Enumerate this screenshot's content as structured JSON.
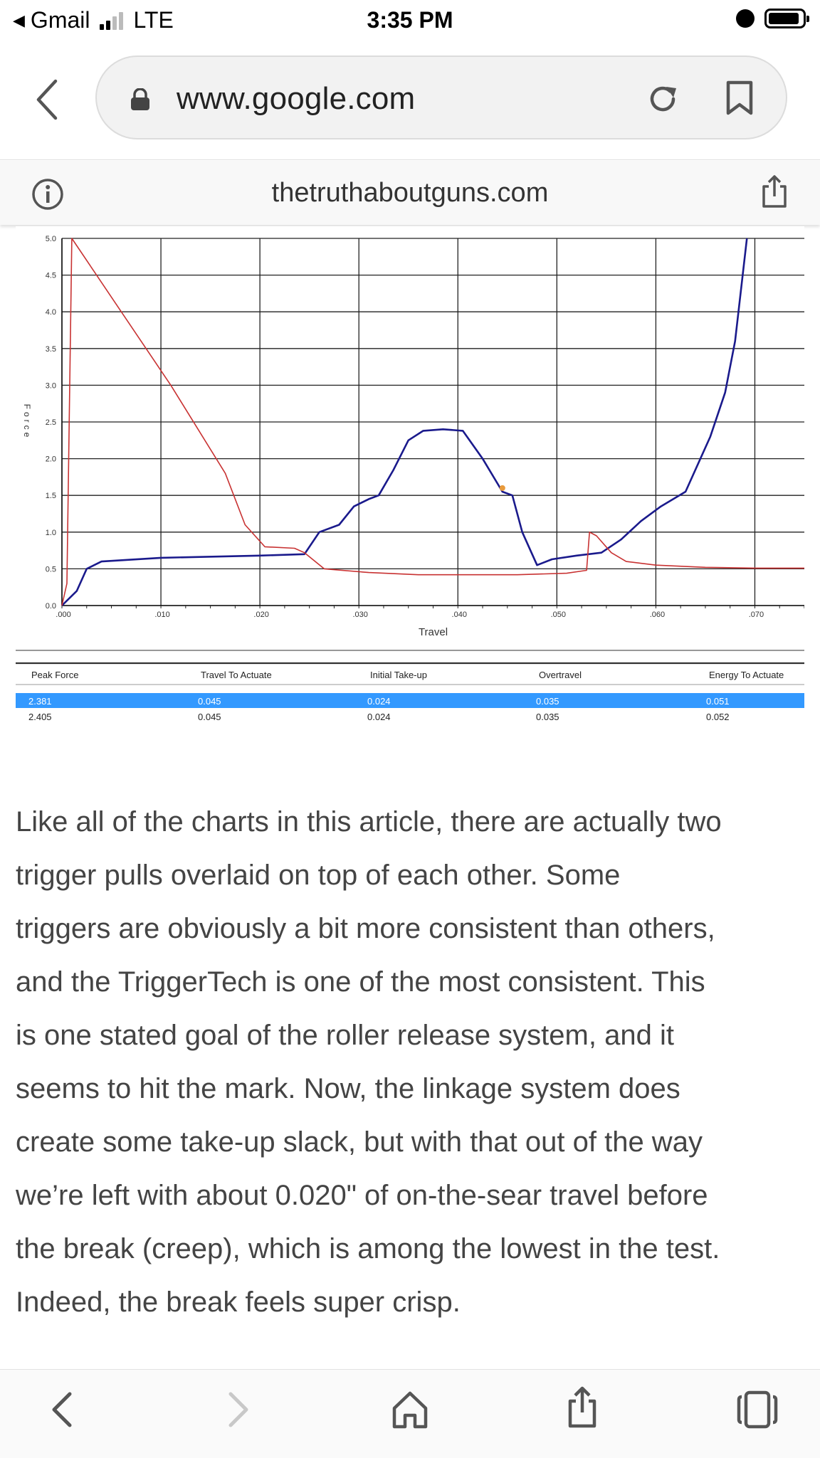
{
  "status": {
    "carrier": "Gmail",
    "network": "LTE",
    "time": "3:35 PM"
  },
  "browser": {
    "url": "www.google.com",
    "amp_domain": "thetruthaboutguns.com"
  },
  "icons": {
    "status": [
      "back-triangle-icon",
      "signal-icon",
      "alarm-icon",
      "battery-icon"
    ],
    "url_bar": [
      "back-chevron-icon",
      "lock-icon",
      "reload-icon",
      "bookmark-icon"
    ],
    "amp_bar": [
      "info-icon",
      "share-icon"
    ],
    "toolbar": [
      "back-chevron-icon",
      "forward-chevron-icon",
      "home-icon",
      "share-icon",
      "tabs-icon"
    ]
  },
  "chart_data": {
    "type": "line",
    "xlabel": "Travel",
    "ylabel": "Force",
    "xlim": [
      0,
      0.075
    ],
    "ylim": [
      0,
      5.0
    ],
    "x_ticks": [
      ".000",
      ".010",
      ".020",
      ".030",
      ".040",
      ".050",
      ".060",
      ".070"
    ],
    "y_ticks": [
      "0.0",
      "0.5",
      "1.0",
      "1.5",
      "2.0",
      "2.5",
      "3.0",
      "3.5",
      "4.0",
      "4.5",
      "5.0"
    ],
    "grid": true,
    "series": [
      {
        "color": "#1a1a8c",
        "x": [
          0.0,
          0.0015,
          0.0025,
          0.004,
          0.01,
          0.02,
          0.0245,
          0.026,
          0.028,
          0.0295,
          0.031,
          0.032,
          0.0335,
          0.035,
          0.0365,
          0.0385,
          0.0405,
          0.0425,
          0.0445,
          0.0455,
          0.0465,
          0.0475,
          0.048,
          0.0495,
          0.052,
          0.0545,
          0.0565,
          0.0585,
          0.0605,
          0.063,
          0.0655,
          0.067,
          0.068,
          0.0692
        ],
        "y": [
          0.0,
          0.2,
          0.5,
          0.6,
          0.65,
          0.68,
          0.7,
          1.0,
          1.1,
          1.35,
          1.45,
          1.5,
          1.85,
          2.25,
          2.38,
          2.4,
          2.38,
          2.0,
          1.55,
          1.5,
          1.0,
          0.7,
          0.55,
          0.63,
          0.68,
          0.72,
          0.9,
          1.15,
          1.35,
          1.55,
          2.3,
          2.9,
          3.6,
          5.0
        ]
      },
      {
        "color": "#c83232",
        "x": [
          0.0,
          0.0005,
          0.001,
          0.006,
          0.011,
          0.0165,
          0.0185,
          0.0205,
          0.0235,
          0.0245,
          0.0265,
          0.031,
          0.036,
          0.046,
          0.051,
          0.053,
          0.0533,
          0.054,
          0.0555,
          0.057,
          0.06,
          0.065,
          0.07,
          0.075
        ],
        "y": [
          0.0,
          0.3,
          5.0,
          4.0,
          3.0,
          1.8,
          1.1,
          0.8,
          0.78,
          0.72,
          0.5,
          0.45,
          0.42,
          0.42,
          0.44,
          0.48,
          1.0,
          0.95,
          0.72,
          0.6,
          0.55,
          0.52,
          0.51,
          0.51
        ]
      }
    ],
    "table": {
      "columns": [
        "Peak Force",
        "Travel To Actuate",
        "Initial Take-up",
        "Overtravel",
        "Energy To Actuate"
      ],
      "rows": [
        [
          "2.381",
          "0.045",
          "0.024",
          "0.035",
          "0.051"
        ],
        [
          "2.405",
          "0.045",
          "0.024",
          "0.035",
          "0.052"
        ]
      ],
      "selected_row": 0,
      "selected_color": "#3399ff"
    }
  },
  "article": {
    "lines": [
      "Like all of the charts in this article, there are actually two",
      "trigger pulls overlaid on top of each other. Some",
      "triggers are obviously a bit more consistent than others,",
      "and the TriggerTech is one of the most consistent. This",
      "is one stated goal of the roller release system, and it",
      "seems to hit the mark. Now, the linkage system does",
      "create some take-up slack, but with that out of the way",
      "we’re left with about 0.020\" of on-the-sear travel before",
      "the break (creep), which is among the lowest in the test.",
      "Indeed, the break feels super crisp."
    ]
  }
}
